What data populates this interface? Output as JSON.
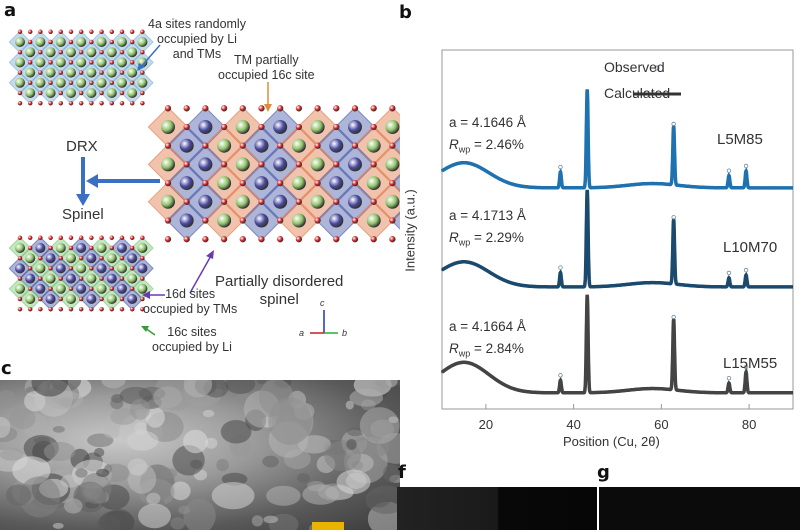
{
  "panels": {
    "a": {
      "label": "a",
      "annotations": {
        "drx_sites": [
          "4a sites randomly",
          "occupied by Li",
          "and TMs"
        ],
        "tm_16c": [
          "TM partially",
          "occupied 16c site"
        ],
        "drx": "DRX",
        "spinel": "Spinel",
        "pds": [
          "Partially disordered",
          "spinel"
        ],
        "site_16d": [
          "16d sites",
          "occupied by TMs"
        ],
        "site_16c": [
          "16c sites",
          "occupied by Li"
        ],
        "axes": {
          "a": "a",
          "b": "b",
          "c": "c"
        }
      },
      "colors": {
        "oxygen": "#b01818",
        "li": "#8fc36a",
        "tm": "#4a4aa0",
        "drx_poly": "#7fb0d8",
        "spinel_poly_li": "#7cc77a",
        "spinel_poly_tm": "#4a5aa8",
        "pds_poly_tm": "#e07a4a",
        "arrow": "#3b6fc4"
      }
    },
    "b": {
      "label": "b",
      "legend": {
        "observed": "Observed",
        "calculated": "Calculated"
      },
      "sample_labels": [
        "L5M85",
        "L10M70",
        "L15M55"
      ],
      "fits": [
        {
          "a": "a = 4.1646 Å",
          "rwp_prefix": "R",
          "rwp_sub": "wp",
          "rwp_value": " = 2.46%"
        },
        {
          "a": "a = 4.1713 Å",
          "rwp_prefix": "R",
          "rwp_sub": "wp",
          "rwp_value": " = 2.29%"
        },
        {
          "a": "a = 4.1664 Å",
          "rwp_prefix": "R",
          "rwp_sub": "wp",
          "rwp_value": " = 2.84%"
        }
      ]
    },
    "c": {
      "label": "c",
      "scale_bar_color": "#e8b400"
    },
    "f": {
      "label": "f"
    },
    "g": {
      "label": "g"
    }
  },
  "chart_data": {
    "type": "line",
    "xlabel": "Position (Cu, 2θ)",
    "ylabel": "Intensity (a.u.)",
    "xlim": [
      10,
      90
    ],
    "ylim": [
      0,
      100
    ],
    "xticks": [
      20,
      40,
      60,
      80
    ],
    "yticks": [],
    "grid": false,
    "legend_position": "top-right",
    "series": [
      {
        "name": "L5M85",
        "color": "#1f72b0",
        "baseline": 61.6,
        "hump": {
          "center": 15,
          "height": 7
        },
        "peaks": [
          [
            37,
            66
          ],
          [
            43.1,
            89
          ],
          [
            62.8,
            78
          ],
          [
            75.4,
            65
          ],
          [
            79.3,
            66.3
          ]
        ]
      },
      {
        "name": "L10M70",
        "color": "#1b4a6e",
        "baseline": 34,
        "hump": {
          "center": 15,
          "height": 7
        },
        "peaks": [
          [
            37,
            38
          ],
          [
            43.1,
            61
          ],
          [
            62.8,
            52
          ],
          [
            75.4,
            36.5
          ],
          [
            79.3,
            37.3
          ]
        ]
      },
      {
        "name": "L15M55",
        "color": "#444444",
        "baseline": 4.5,
        "hump": {
          "center": 15,
          "height": 8.5
        },
        "peaks": [
          [
            37,
            8
          ],
          [
            43.1,
            31.8
          ],
          [
            62.8,
            24.2
          ],
          [
            75.4,
            7.2
          ],
          [
            79.3,
            10.3
          ]
        ]
      }
    ]
  }
}
